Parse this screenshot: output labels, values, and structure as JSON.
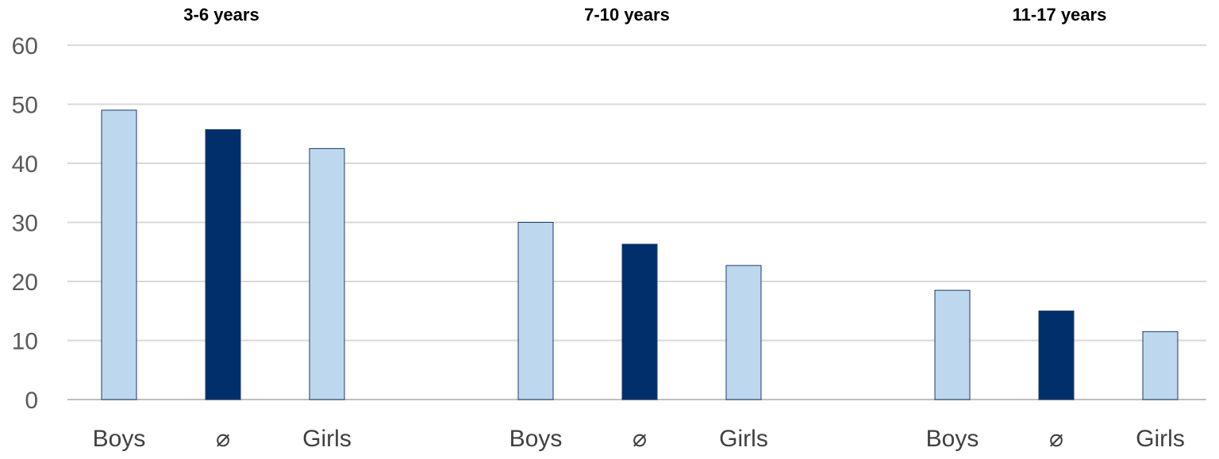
{
  "chart_data": {
    "type": "bar",
    "ylim": [
      0,
      60
    ],
    "yticks": [
      0,
      10,
      20,
      30,
      40,
      50,
      60
    ],
    "grid": true,
    "groups": [
      {
        "label": "3-6 years",
        "bars": [
          {
            "category": "Boys",
            "value": 49
          },
          {
            "category": "⌀",
            "value": 45.7
          },
          {
            "category": "Girls",
            "value": 42.5
          }
        ]
      },
      {
        "label": "7-10 years",
        "bars": [
          {
            "category": "Boys",
            "value": 30
          },
          {
            "category": "⌀",
            "value": 26.3
          },
          {
            "category": "Girls",
            "value": 22.7
          }
        ]
      },
      {
        "label": "11-17 years",
        "bars": [
          {
            "category": "Boys",
            "value": 18.5
          },
          {
            "category": "⌀",
            "value": 15
          },
          {
            "category": "Girls",
            "value": 11.5
          }
        ]
      }
    ],
    "colors": {
      "sex": "#bdd7ee",
      "average": "#002f6c",
      "bar_outline": "#1f3864",
      "grid": "#d9d9d9"
    }
  }
}
